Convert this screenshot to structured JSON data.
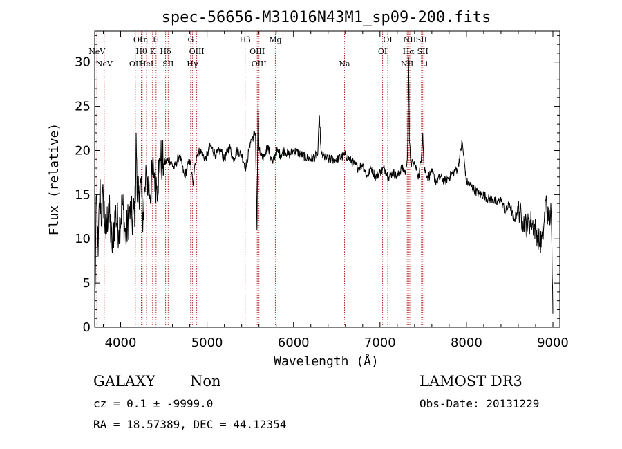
{
  "chart_data": {
    "type": "line",
    "title": "spec-56656-M31016N43M1_sp09-200.fits",
    "xlabel": "Wavelength (Å)",
    "ylabel": "Flux (relative)",
    "xlim": [
      3700,
      9080
    ],
    "ylim": [
      0,
      33.5
    ],
    "xticks": [
      4000,
      5000,
      6000,
      7000,
      8000,
      9000
    ],
    "yticks": [
      0,
      5,
      10,
      15,
      20,
      25,
      30
    ],
    "grid": false,
    "series": [
      {
        "name": "flux",
        "color": "#000000",
        "x": [
          3700,
          3720,
          3740,
          3760,
          3780,
          3800,
          3830,
          3860,
          3900,
          3940,
          3980,
          4020,
          4060,
          4100,
          4140,
          4170,
          4180,
          4190,
          4220,
          4260,
          4300,
          4340,
          4380,
          4420,
          4460,
          4500,
          4560,
          4620,
          4680,
          4740,
          4800,
          4840,
          4861,
          4880,
          4920,
          4980,
          5040,
          5100,
          5160,
          5200,
          5260,
          5300,
          5350,
          5400,
          5450,
          5500,
          5560,
          5577,
          5590,
          5600,
          5640,
          5700,
          5760,
          5800,
          5850,
          5893,
          5950,
          6000,
          6100,
          6200,
          6280,
          6300,
          6320,
          6400,
          6500,
          6600,
          6700,
          6750,
          6800,
          6850,
          6900,
          6950,
          7000,
          7050,
          7100,
          7150,
          7200,
          7250,
          7300,
          7320,
          7331,
          7340,
          7360,
          7400,
          7450,
          7480,
          7495,
          7510,
          7550,
          7600,
          7650,
          7700,
          7750,
          7800,
          7850,
          7900,
          7950,
          8000,
          8050,
          8100,
          8150,
          8200,
          8250,
          8300,
          8350,
          8400,
          8450,
          8500,
          8550,
          8600,
          8650,
          8700,
          8750,
          8800,
          8850,
          8880,
          8900,
          8920,
          8950,
          8980,
          9000
        ],
        "values": [
          0.5,
          15,
          8,
          16,
          12,
          15,
          10,
          14,
          9,
          13,
          11,
          14,
          10,
          13,
          12,
          14,
          22,
          15,
          16,
          13,
          17,
          15,
          18,
          16,
          19,
          18.5,
          19,
          18,
          19.5,
          17,
          19,
          16,
          18.5,
          19.5,
          20,
          19,
          20.5,
          19.5,
          20,
          19,
          20.5,
          19,
          20,
          19.5,
          18,
          21,
          22,
          11,
          25.5,
          20,
          19,
          20.5,
          18.5,
          20,
          19.5,
          20,
          19.5,
          20,
          19.5,
          19,
          19.5,
          24,
          19.5,
          19,
          19,
          19.5,
          18.5,
          18,
          18.5,
          17,
          18,
          17,
          17.5,
          18,
          17,
          17.5,
          17,
          18,
          17.5,
          20,
          30.5,
          21,
          18.5,
          18.5,
          17,
          19.5,
          22,
          18,
          17,
          17.5,
          16.5,
          17,
          16.5,
          17,
          17.5,
          18,
          21,
          16.5,
          16,
          15.5,
          15,
          15,
          14.5,
          14.5,
          14,
          14.5,
          13,
          14,
          12,
          13.5,
          12,
          11.5,
          12,
          11,
          9.5,
          10,
          12,
          14.5,
          12,
          13,
          1.5
        ]
      }
    ],
    "lines": [
      {
        "label": "NeV",
        "wavelength": 3726,
        "row": 1
      },
      {
        "label": "NeV",
        "wavelength": 3810,
        "row": 0
      },
      {
        "label": "OII",
        "wavelength": 4170,
        "row": 0
      },
      {
        "label": "OI",
        "wavelength": 4200,
        "row": 2
      },
      {
        "label": "Hθ",
        "wavelength": 4240,
        "row": 1
      },
      {
        "label": "Hη",
        "wavelength": 4250,
        "row": 2
      },
      {
        "label": "HeI",
        "wavelength": 4300,
        "row": 0
      },
      {
        "label": "K",
        "wavelength": 4370,
        "row": 1
      },
      {
        "label": "H",
        "wavelength": 4410,
        "row": 2
      },
      {
        "label": "Hδ",
        "wavelength": 4520,
        "row": 1
      },
      {
        "label": "SII",
        "wavelength": 4550,
        "row": 0
      },
      {
        "label": "G",
        "wavelength": 4810,
        "row": 2
      },
      {
        "label": "Hγ",
        "wavelength": 4830,
        "row": 0
      },
      {
        "label": "OIII",
        "wavelength": 4880,
        "row": 1
      },
      {
        "label": "Hβ",
        "wavelength": 5440,
        "row": 2
      },
      {
        "label": "OIII",
        "wavelength": 5580,
        "row": 1
      },
      {
        "label": "OIII",
        "wavelength": 5600,
        "row": 0
      },
      {
        "label": "Mg",
        "wavelength": 5790,
        "row": 2
      },
      {
        "label": "Na",
        "wavelength": 6590,
        "row": 0
      },
      {
        "label": "OI",
        "wavelength": 7030,
        "row": 1
      },
      {
        "label": "OI",
        "wavelength": 7090,
        "row": 2
      },
      {
        "label": "NII",
        "wavelength": 7315,
        "row": 0
      },
      {
        "label": "Hα",
        "wavelength": 7331,
        "row": 1
      },
      {
        "label": "NII",
        "wavelength": 7345,
        "row": 2
      },
      {
        "label": "SII",
        "wavelength": 7480,
        "row": 2
      },
      {
        "label": "SII",
        "wavelength": 7495,
        "row": 1
      },
      {
        "label": "Li",
        "wavelength": 7510,
        "row": 0
      }
    ]
  },
  "info": {
    "class": "GALAXY",
    "subclass": "Non",
    "survey": "LAMOST DR3",
    "cz": "cz = 0.1 ± -9999.0",
    "obs_date": "Obs-Date: 20131229",
    "coords": "RA =  18.57389, DEC =  44.12354"
  },
  "colors": {
    "spectrum": "#000000",
    "line_markers": "#b22222",
    "axes": "#000000"
  }
}
